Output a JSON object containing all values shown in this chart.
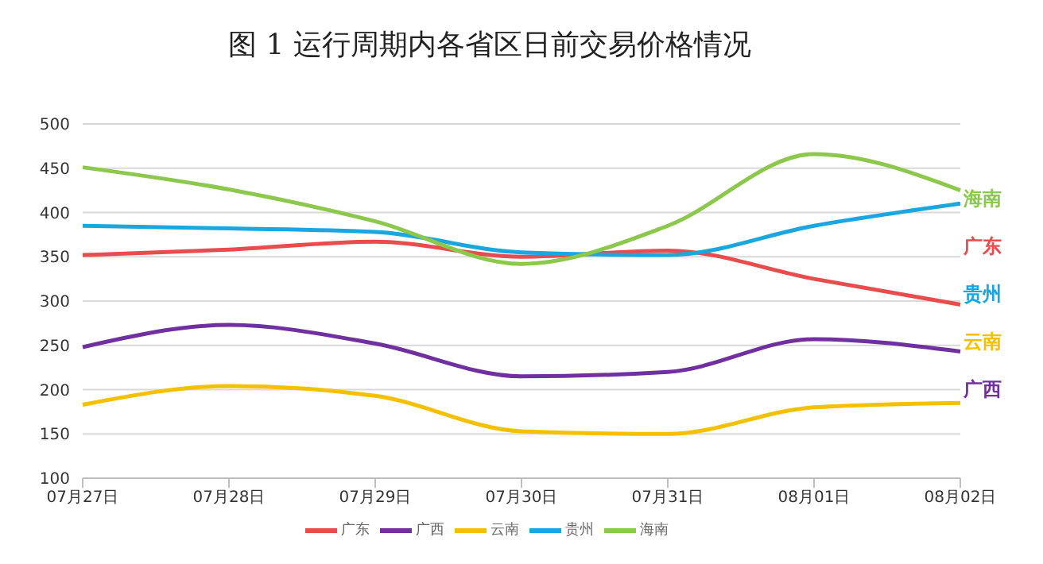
{
  "chart_data": {
    "type": "line",
    "title": "图 1  运行周期内各省区日前交易价格情况",
    "categories": [
      "07月27日",
      "07月28日",
      "07月29日",
      "07月30日",
      "07月31日",
      "08月01日",
      "08月02日"
    ],
    "series": [
      {
        "name": "广东",
        "color": "#e84c4c",
        "values": [
          352,
          358,
          367,
          350,
          357,
          325,
          296
        ]
      },
      {
        "name": "广西",
        "color": "#7030a0",
        "values": [
          248,
          273,
          252,
          215,
          220,
          257,
          243
        ]
      },
      {
        "name": "云南",
        "color": "#f5c000",
        "values": [
          183,
          204,
          193,
          153,
          150,
          180,
          185
        ]
      },
      {
        "name": "贵州",
        "color": "#1aa7e0",
        "values": [
          385,
          382,
          378,
          355,
          352,
          385,
          410
        ]
      },
      {
        "name": "海南",
        "color": "#8cc84b",
        "values": [
          451,
          426,
          390,
          342,
          385,
          466,
          425
        ]
      }
    ],
    "annotations": [
      "海南",
      "广东",
      "贵州",
      "云南",
      "广西"
    ],
    "ylim": [
      100,
      500
    ],
    "yticks": [
      100,
      150,
      200,
      250,
      300,
      350,
      400,
      450,
      500
    ],
    "grid": "y",
    "legend": "bottom",
    "marker": "none",
    "line_style": "solid"
  }
}
